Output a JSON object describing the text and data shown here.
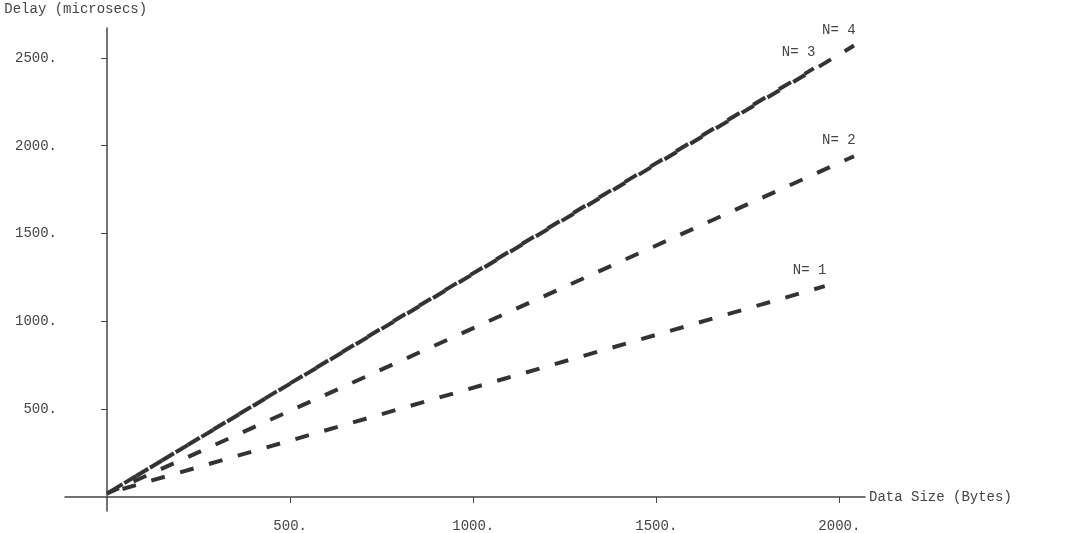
{
  "chart_data": {
    "type": "line",
    "xlabel": "Data Size (Bytes)",
    "ylabel": "Delay (microsecs)",
    "xlim": [
      -115,
      2070
    ],
    "ylim": [
      -80,
      2670
    ],
    "xticks": [
      {
        "value": 500,
        "label": "500."
      },
      {
        "value": 1000,
        "label": "1000."
      },
      {
        "value": 1500,
        "label": "1500."
      },
      {
        "value": 2000,
        "label": "2000."
      }
    ],
    "yticks": [
      {
        "value": 500,
        "label": "500."
      },
      {
        "value": 1000,
        "label": "1000."
      },
      {
        "value": 1500,
        "label": "1500."
      },
      {
        "value": 2000,
        "label": "2000."
      },
      {
        "value": 2500,
        "label": "2500."
      }
    ],
    "grid": false,
    "legend": false,
    "marker": "none",
    "line_style": "dashed",
    "series": [
      {
        "name": "N= 1",
        "color": "#333333",
        "x": [
          0,
          1960
        ],
        "values": [
          20,
          1200
        ]
      },
      {
        "name": "N= 2",
        "color": "#333333",
        "x": [
          0,
          2040
        ],
        "values": [
          20,
          1940
        ]
      },
      {
        "name": "N= 3",
        "color": "#333333",
        "x": [
          0,
          1930
        ],
        "values": [
          20,
          2440
        ]
      },
      {
        "name": "N= 4",
        "color": "#333333",
        "x": [
          0,
          2040
        ],
        "values": [
          20,
          2570
        ]
      }
    ]
  }
}
